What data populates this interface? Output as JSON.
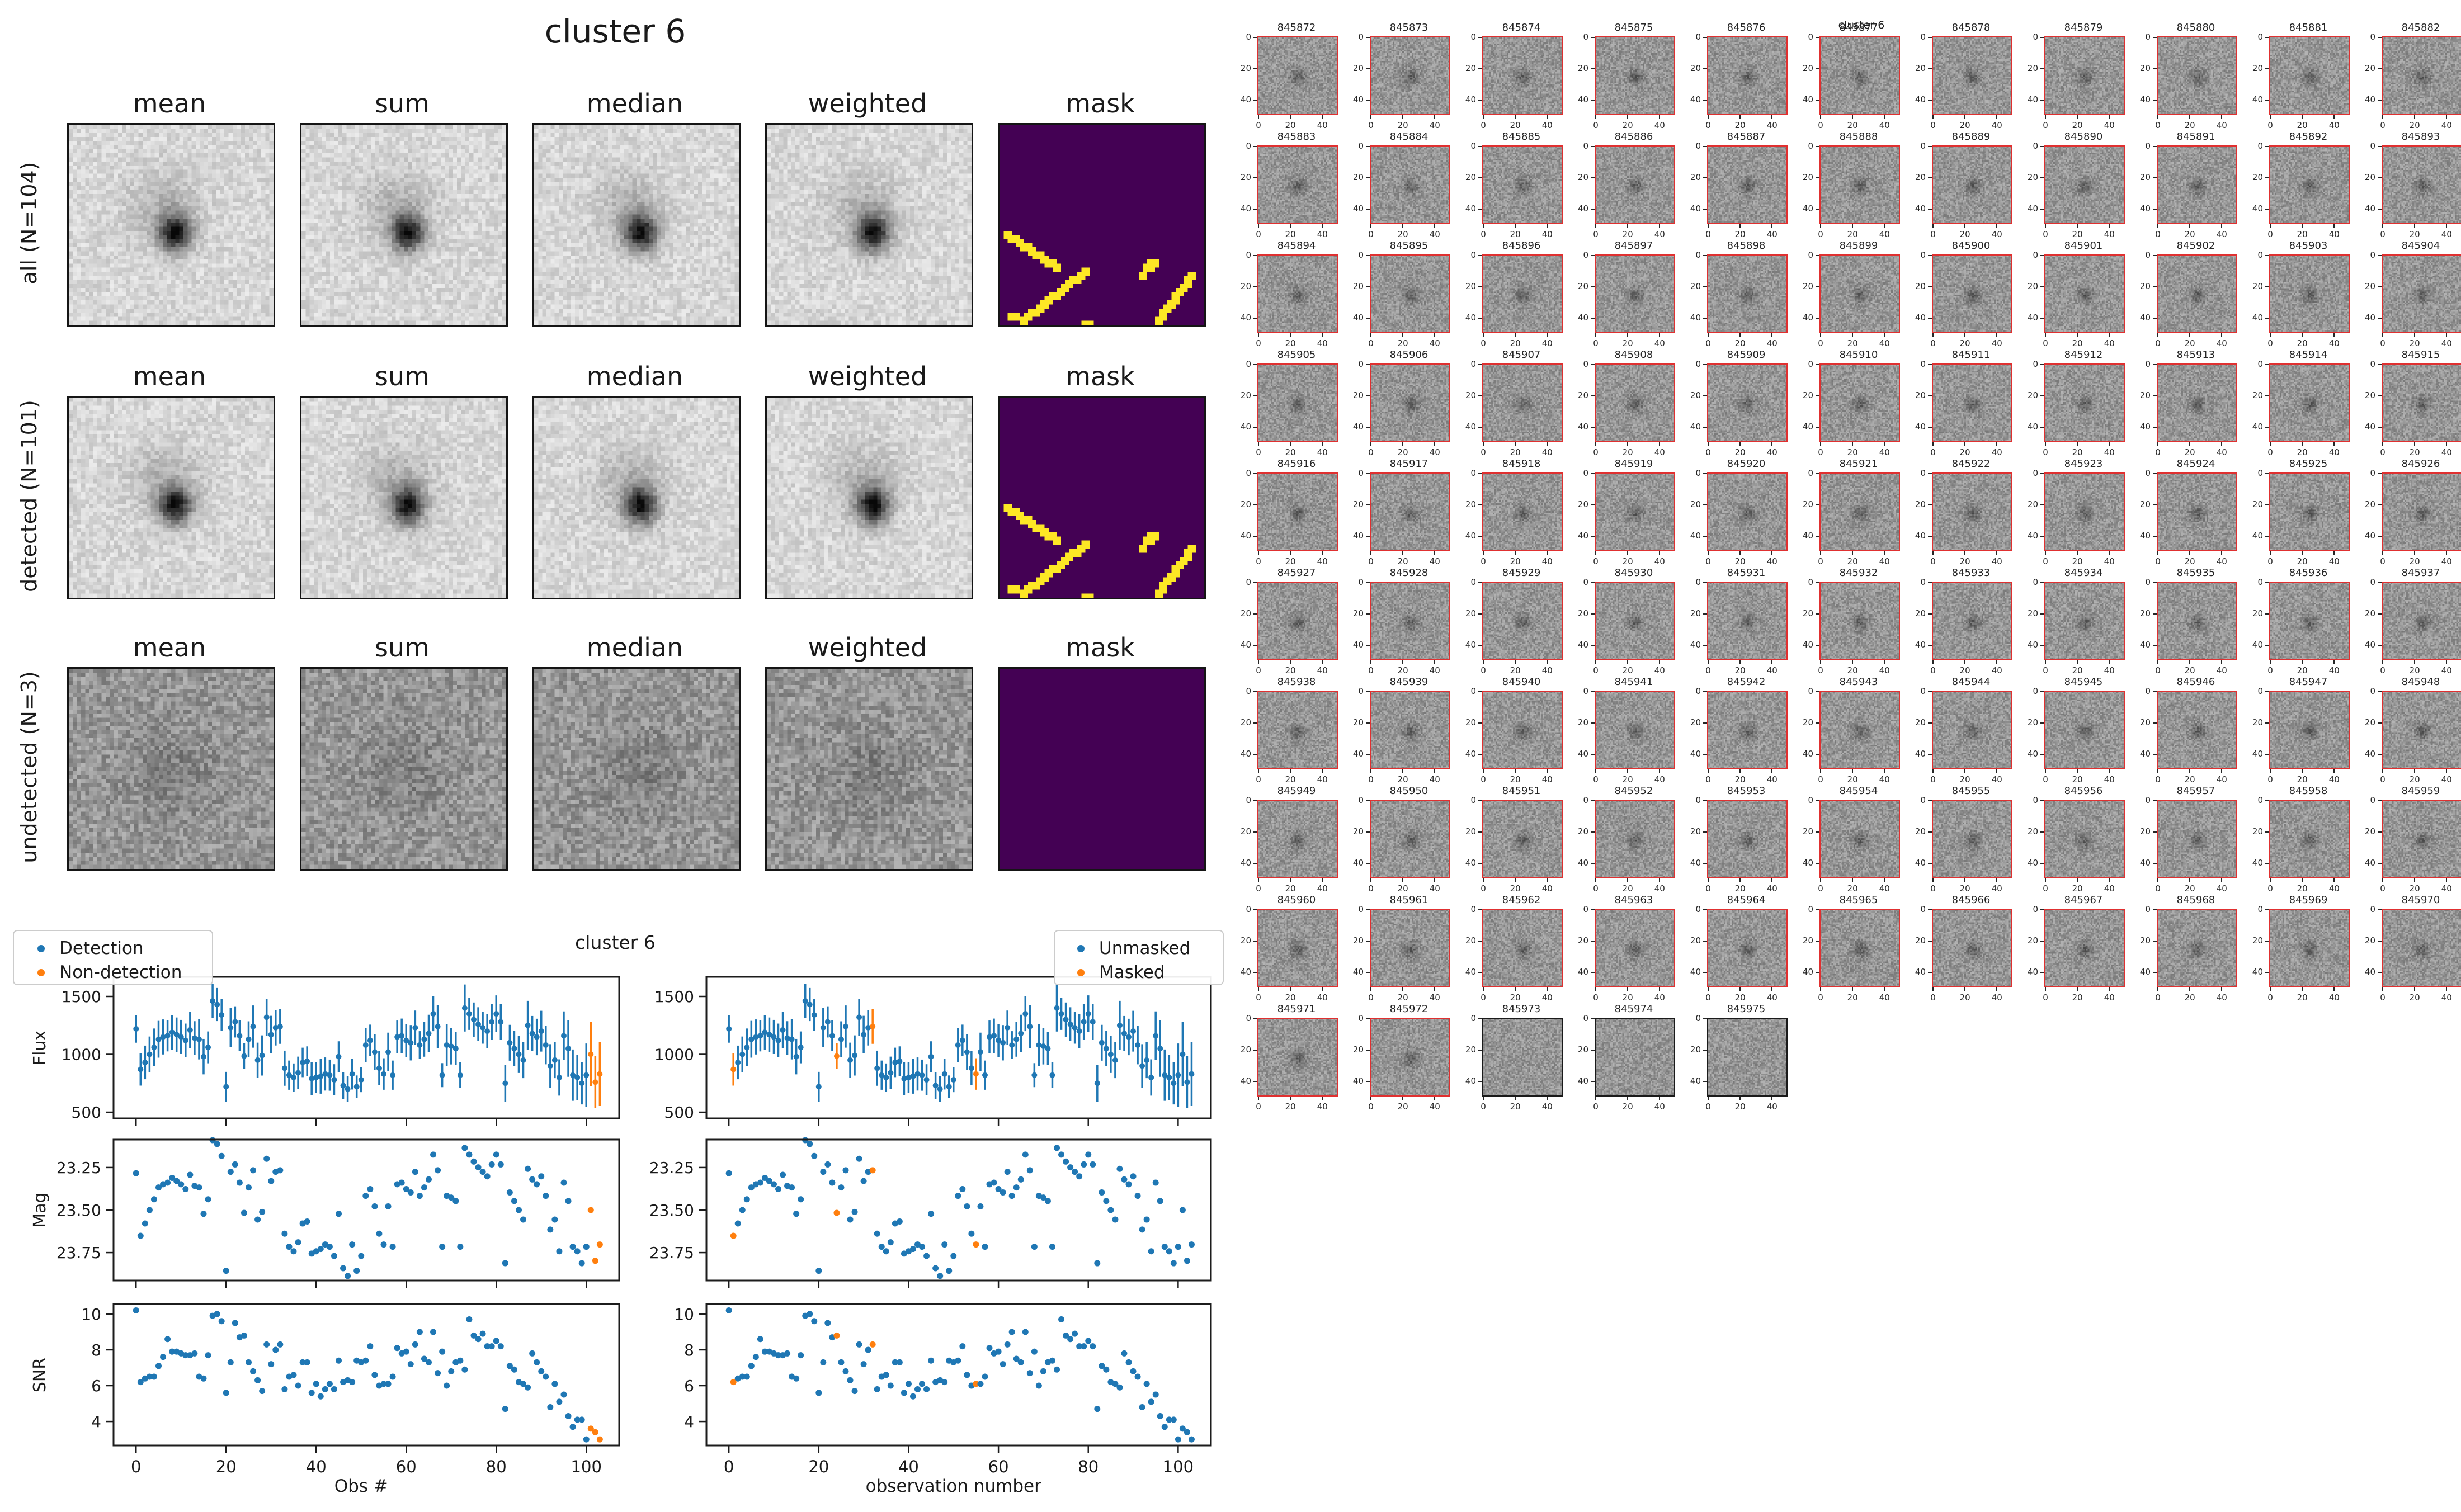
{
  "composite": {
    "title": "cluster 6",
    "column_headers": [
      "mean",
      "sum",
      "median",
      "weighted",
      "mask"
    ],
    "rows": [
      {
        "label": "all (N=104)",
        "style": "bright",
        "mask": "streaks"
      },
      {
        "label": "detected (N=101)",
        "style": "bright",
        "mask": "streaks"
      },
      {
        "label": "undetected (N=3)",
        "style": "faint",
        "mask": "empty"
      }
    ],
    "mask_colors": {
      "background": "#440154",
      "flag": "#fde725"
    },
    "mask_streaks": [
      [
        1,
        26,
        13,
        34
      ],
      [
        20,
        35,
        5,
        47
      ],
      [
        46,
        36,
        38,
        47
      ]
    ],
    "mask_cells": [
      [
        36,
        33
      ],
      [
        37,
        33
      ],
      [
        35,
        34
      ],
      [
        36,
        34
      ],
      [
        34,
        36
      ],
      [
        2,
        46
      ],
      [
        3,
        46
      ],
      [
        20,
        48
      ],
      [
        21,
        48
      ]
    ]
  },
  "stamp_grid": {
    "suptitle": "cluster 6",
    "columns": 11,
    "tick_values": [
      0,
      20,
      40
    ],
    "detected_border": "#e03030",
    "undetected_border": "#1a1a1a",
    "undetected_ids": [
      845973,
      845974,
      845975
    ],
    "ids": [
      845872,
      845873,
      845874,
      845875,
      845876,
      845877,
      845878,
      845879,
      845880,
      845881,
      845882,
      845883,
      845884,
      845885,
      845886,
      845887,
      845888,
      845889,
      845890,
      845891,
      845892,
      845893,
      845894,
      845895,
      845896,
      845897,
      845898,
      845899,
      845900,
      845901,
      845902,
      845903,
      845904,
      845905,
      845906,
      845907,
      845908,
      845909,
      845910,
      845911,
      845912,
      845913,
      845914,
      845915,
      845916,
      845917,
      845918,
      845919,
      845920,
      845921,
      845922,
      845923,
      845924,
      845925,
      845926,
      845927,
      845928,
      845929,
      845930,
      845931,
      845932,
      845933,
      845934,
      845935,
      845936,
      845937,
      845938,
      845939,
      845940,
      845941,
      845942,
      845943,
      845944,
      845945,
      845946,
      845947,
      845948,
      845949,
      845950,
      845951,
      845952,
      845953,
      845954,
      845955,
      845956,
      845957,
      845958,
      845959,
      845960,
      845961,
      845962,
      845963,
      845964,
      845965,
      845966,
      845967,
      845968,
      845969,
      845970,
      845971,
      845972,
      845973,
      845974,
      845975
    ]
  },
  "plots": {
    "suptitle": "cluster 6",
    "colors": {
      "primary": "#1f77b4",
      "secondary": "#ff7f0e"
    },
    "x_ticks": [
      0,
      20,
      40,
      60,
      80,
      100
    ],
    "left_column": {
      "xlabel": "Obs #",
      "legend": [
        "Detection",
        "Non-detection"
      ],
      "secondary_indices": [
        101,
        102,
        103
      ]
    },
    "right_column": {
      "xlabel": "observation number",
      "legend": [
        "Unmasked",
        "Masked"
      ],
      "secondary_indices": [
        1,
        24,
        32,
        55
      ]
    },
    "panels": [
      {
        "ylabel": "Flux",
        "kind": "errorbar",
        "value": "flux",
        "ytick_labels": [
          "1500",
          "1000",
          "500"
        ],
        "ytick_values": [
          1500,
          1000,
          500
        ],
        "ylim_top": 1669,
        "ylim_bottom": 447
      },
      {
        "ylabel": "Mag",
        "kind": "scatter",
        "value": "mag",
        "ytick_labels": [
          "23.25",
          "23.50",
          "23.75"
        ],
        "ytick_values": [
          23.25,
          23.5,
          23.75
        ],
        "ylim_top": 23.086,
        "ylim_bottom": 23.914
      },
      {
        "ylabel": "SNR",
        "kind": "scatter",
        "value": "snr",
        "ytick_labels": [
          "10",
          "8",
          "6",
          "4"
        ],
        "ytick_values": [
          10,
          8,
          6,
          4
        ],
        "ylim_top": 10.56,
        "ylim_bottom": 2.66
      }
    ]
  },
  "chart_data": {
    "type": "errorbar+scatter",
    "title": "cluster 6",
    "n_obs": 104,
    "x": "observation index 0..103",
    "xlim": [
      -5,
      107.3
    ],
    "panels": [
      "Flux",
      "Mag",
      "SNR"
    ],
    "flux": [
      1220,
      870,
      930,
      1000,
      1060,
      1130,
      1150,
      1160,
      1190,
      1170,
      1150,
      1120,
      1210,
      1140,
      1130,
      980,
      1060,
      1460,
      1430,
      1340,
      720,
      1230,
      1280,
      1160,
      985,
      1130,
      1240,
      950,
      990,
      1320,
      1170,
      1230,
      1240,
      880,
      820,
      800,
      840,
      930,
      940,
      790,
      800,
      810,
      830,
      820,
      780,
      980,
      730,
      700,
      830,
      720,
      780,
      1080,
      1120,
      1020,
      880,
      830,
      1020,
      820,
      1150,
      1160,
      1120,
      1100,
      1230,
      1080,
      1130,
      1180,
      1350,
      1240,
      820,
      1080,
      1070,
      1050,
      820,
      1400,
      1350,
      1300,
      1260,
      1230,
      1200,
      1280,
      1350,
      1280,
      750,
      1100,
      1050,
      1000,
      950,
      1250,
      1180,
      1150,
      1200,
      1080,
      900,
      950,
      800,
      1160,
      1050,
      820,
      800,
      750,
      820,
      1000,
      760,
      830
    ],
    "snr": [
      10.2,
      6.2,
      6.4,
      6.5,
      6.5,
      7.1,
      7.6,
      8.6,
      7.9,
      7.9,
      7.8,
      7.7,
      7.7,
      7.8,
      6.5,
      6.4,
      7.7,
      9.9,
      10.0,
      9.6,
      5.6,
      7.3,
      9.5,
      8.7,
      8.8,
      7.3,
      6.8,
      6.3,
      5.7,
      8.3,
      7.2,
      8.0,
      8.3,
      5.8,
      6.5,
      6.6,
      6.0,
      7.3,
      7.3,
      5.6,
      6.1,
      5.4,
      5.8,
      6.1,
      5.8,
      7.4,
      6.2,
      6.3,
      6.2,
      7.4,
      7.3,
      7.4,
      8.2,
      6.6,
      6.0,
      6.1,
      6.1,
      6.5,
      8.1,
      7.8,
      7.9,
      7.2,
      8.3,
      9.0,
      7.5,
      7.3,
      9.0,
      6.7,
      7.9,
      6.0,
      6.8,
      7.3,
      7.4,
      6.9,
      9.7,
      8.8,
      8.6,
      8.9,
      8.2,
      8.2,
      8.5,
      8.2,
      4.7,
      7.1,
      6.9,
      6.2,
      6.1,
      5.9,
      7.8,
      7.3,
      6.8,
      6.5,
      4.8,
      6.1,
      5.1,
      5.5,
      4.3,
      3.7,
      4.1,
      4.1,
      3.0,
      3.6,
      3.4,
      3.0
    ],
    "flux_err_formula": "flux_err = flux / snr",
    "mag_formula": "mag = 23.5 - 2.5*log10(flux/1000)",
    "non_detection_indices": [
      101,
      102,
      103
    ],
    "masked_indices": [
      1,
      24,
      32,
      55
    ]
  }
}
